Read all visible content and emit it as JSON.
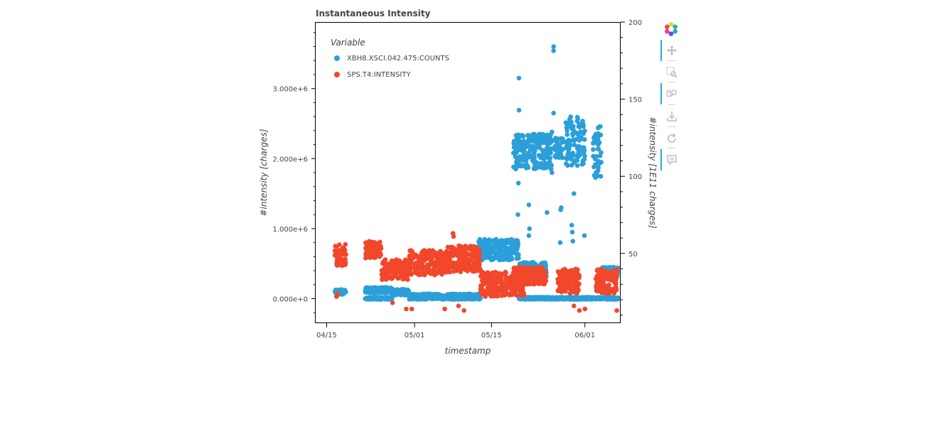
{
  "chart_data": {
    "type": "scatter",
    "title": "Instantaneous Intensity",
    "xlabel": "timestamp",
    "ylabel": "#intensity [charges]",
    "ylabel_right": "#intensity [1E11 charges]",
    "legend_title": "Variable",
    "legend_position": "top-left",
    "x_ticks": [
      "04/15",
      "05/01",
      "05/15",
      "06/01"
    ],
    "y_ticks": [
      "0.000e+0",
      "1.000e+6",
      "2.000e+6",
      "3.000e+6"
    ],
    "y_ticks_right": [
      "50",
      "100",
      "150",
      "200"
    ],
    "xlim_days_from_04_15": [
      -2,
      53.5
    ],
    "ylim": [
      -350000,
      3950000
    ],
    "ylim_right": [
      4.8,
      200
    ],
    "grid": false,
    "series": [
      {
        "name": "XBH8.XSCI.042.475:COUNTS",
        "color": "#2b9fd9",
        "axis": "left",
        "clusters": [
          {
            "x": [
              1.5,
              3.5
            ],
            "y": [
              60000,
              130000
            ]
          },
          {
            "x": [
              7.0,
              12.0
            ],
            "y": [
              80000,
              160000
            ]
          },
          {
            "x": [
              7.0,
              12.0
            ],
            "y": [
              -10000,
              20000
            ]
          },
          {
            "x": [
              12.0,
              15.0
            ],
            "y": [
              50000,
              140000
            ]
          },
          {
            "x": [
              15.0,
              28.0
            ],
            "y": [
              -10000,
              70000
            ]
          },
          {
            "x": [
              27.5,
              35.0
            ],
            "y": [
              550000,
              850000
            ]
          },
          {
            "x": [
              34.0,
              41.0
            ],
            "y": [
              1850000,
              2350000
            ]
          },
          {
            "x": [
              35.0,
              40.0
            ],
            "y": [
              300000,
              520000
            ]
          },
          {
            "x": [
              35.0,
              53.0
            ],
            "y": [
              -10000,
              20000
            ]
          },
          {
            "x": [
              41.5,
              43.0
            ],
            "y": [
              2000000,
              2300000
            ]
          },
          {
            "x": [
              43.5,
              47.0
            ],
            "y": [
              1900000,
              2600000
            ]
          },
          {
            "x": [
              48.5,
              50.0
            ],
            "y": [
              1700000,
              2500000
            ]
          },
          {
            "x": [
              50.0,
              53.0
            ],
            "y": [
              300000,
              450000
            ]
          }
        ],
        "outliers": [
          {
            "x": 35.0,
            "y": 3150000
          },
          {
            "x": 35.0,
            "y": 2690000
          },
          {
            "x": 34.8,
            "y": 1200000
          },
          {
            "x": 34.9,
            "y": 1650000
          },
          {
            "x": 36.8,
            "y": 900000
          },
          {
            "x": 36.9,
            "y": 1000000
          },
          {
            "x": 36.8,
            "y": 1340000
          },
          {
            "x": 40.1,
            "y": 1230000
          },
          {
            "x": 41.0,
            "y": 1800000
          },
          {
            "x": 41.0,
            "y": 2140000
          },
          {
            "x": 41.0,
            "y": 2380000
          },
          {
            "x": 41.3,
            "y": 3600000
          },
          {
            "x": 41.3,
            "y": 3540000
          },
          {
            "x": 41.3,
            "y": 2650000
          },
          {
            "x": 42.6,
            "y": 1270000
          },
          {
            "x": 42.7,
            "y": 1300000
          },
          {
            "x": 42.5,
            "y": 800000
          },
          {
            "x": 44.6,
            "y": 1050000
          },
          {
            "x": 44.7,
            "y": 950000
          },
          {
            "x": 44.8,
            "y": 820000
          },
          {
            "x": 46.9,
            "y": 900000
          },
          {
            "x": 38.0,
            "y": 20000
          },
          {
            "x": 45.0,
            "y": 1500000
          }
        ]
      },
      {
        "name": "SPS.T4:INTENSITY",
        "color": "#f2472b",
        "axis": "right",
        "clusters": [
          {
            "x": [
              1.5,
              3.5
            ],
            "y": [
              42,
              56
            ]
          },
          {
            "x": [
              7.0,
              10.0
            ],
            "y": [
              47,
              58
            ]
          },
          {
            "x": [
              10.0,
              15.0
            ],
            "y": [
              33,
              46
            ]
          },
          {
            "x": [
              15.0,
              22.0
            ],
            "y": [
              36,
              52
            ]
          },
          {
            "x": [
              22.0,
              28.0
            ],
            "y": [
              38,
              55
            ]
          },
          {
            "x": [
              28.0,
              36.0
            ],
            "y": [
              22,
              38
            ]
          },
          {
            "x": [
              34.0,
              40.0
            ],
            "y": [
              30,
              41
            ]
          },
          {
            "x": [
              42.0,
              46.0
            ],
            "y": [
              24,
              40
            ]
          },
          {
            "x": [
              49.0,
              53.0
            ],
            "y": [
              24,
              40
            ]
          }
        ],
        "outliers": [
          {
            "x": 1.8,
            "y": 22
          },
          {
            "x": 2.0,
            "y": 24
          },
          {
            "x": 12.0,
            "y": 18
          },
          {
            "x": 14.5,
            "y": 14
          },
          {
            "x": 15.5,
            "y": 14
          },
          {
            "x": 21.5,
            "y": 14
          },
          {
            "x": 24.0,
            "y": 16
          },
          {
            "x": 25.0,
            "y": 13
          },
          {
            "x": 23.0,
            "y": 63
          },
          {
            "x": 23.1,
            "y": 61
          },
          {
            "x": 45.0,
            "y": 16
          },
          {
            "x": 46.0,
            "y": 13
          },
          {
            "x": 47.0,
            "y": 14
          },
          {
            "x": 52.8,
            "y": 13
          }
        ]
      }
    ]
  },
  "toolbar": {
    "tools": [
      "bokeh-logo",
      "pan-icon",
      "box-zoom-icon",
      "wheel-zoom-icon",
      "save-icon",
      "reset-icon",
      "hover-icon"
    ],
    "accent": "#26aae1"
  }
}
